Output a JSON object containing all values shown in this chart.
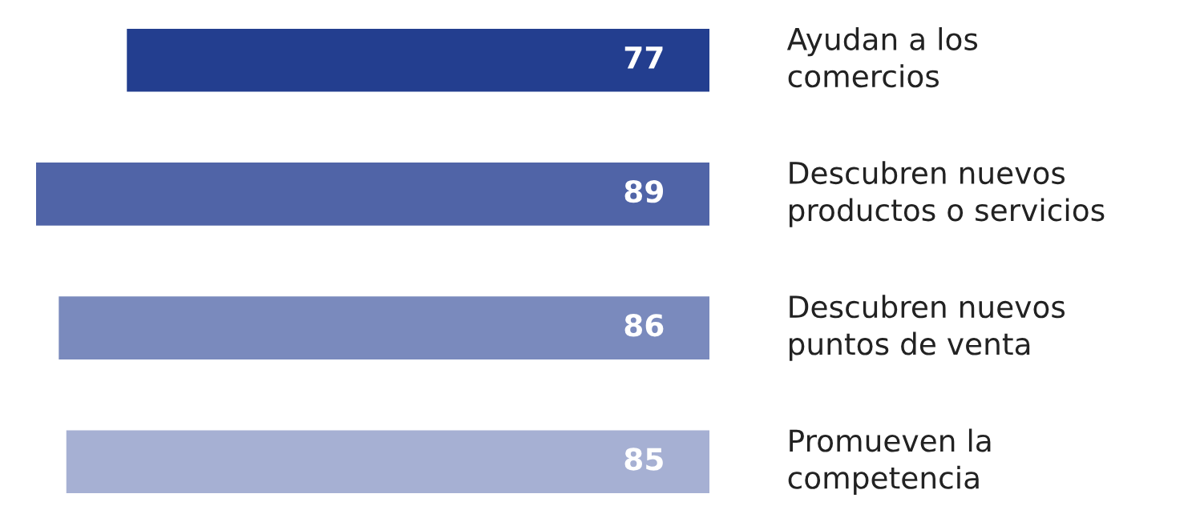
{
  "chart_data": {
    "type": "bar",
    "orientation": "horizontal",
    "categories": [
      "Ayudan a los\ncomercios",
      "Descubren nuevos\nproductos o servicios",
      "Descubren nuevos\npuntos de venta",
      "Promueven la\ncompetencia"
    ],
    "values": [
      77,
      89,
      86,
      85
    ],
    "colors": [
      "#233e8f",
      "#5064a7",
      "#7a8abd",
      "#a6b0d3"
    ],
    "xlim": [
      89,
      0
    ],
    "data_labels": true,
    "tick_labels": false
  }
}
